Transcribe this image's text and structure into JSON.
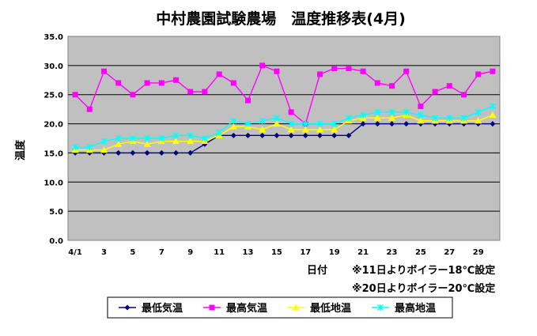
{
  "chart_data": {
    "type": "line",
    "title": "中村農園試験農場　温度推移表(4月)",
    "ylabel": "温度",
    "xlabel": "日付",
    "ylim": [
      0,
      35
    ],
    "y_ticks": [
      "0.0",
      "5.0",
      "10.0",
      "15.0",
      "20.0",
      "25.0",
      "30.0",
      "35.0"
    ],
    "x_tick_labels": [
      "4/1",
      "3",
      "5",
      "7",
      "9",
      "11",
      "13",
      "15",
      "17",
      "19",
      "21",
      "23",
      "25",
      "27",
      "29"
    ],
    "x": [
      1,
      2,
      3,
      4,
      5,
      6,
      7,
      8,
      9,
      10,
      11,
      12,
      13,
      14,
      15,
      16,
      17,
      18,
      19,
      20,
      21,
      22,
      23,
      24,
      25,
      26,
      27,
      28,
      29,
      30
    ],
    "grid": true,
    "legend_position": "bottom",
    "series": [
      {
        "name": "最低気温",
        "color": "#000080",
        "marker": "diamond",
        "values": [
          15,
          15,
          15,
          15,
          15,
          15,
          15,
          15,
          15,
          16.5,
          18,
          18,
          18,
          18,
          18,
          18,
          18,
          18,
          18,
          18,
          20,
          20,
          20,
          20,
          20,
          20,
          20,
          20,
          20,
          20
        ]
      },
      {
        "name": "最高気温",
        "color": "#ff00ff",
        "marker": "square",
        "values": [
          25,
          22.5,
          29,
          27,
          25,
          27,
          27,
          27.5,
          25.5,
          25.5,
          28.5,
          27,
          24,
          30,
          29,
          22,
          20,
          28.5,
          29.5,
          29.5,
          29,
          27,
          26.5,
          29,
          23,
          25.5,
          26.5,
          25,
          28.5,
          29
        ]
      },
      {
        "name": "最低地温",
        "color": "#ffff00",
        "marker": "triangle",
        "values": [
          15.5,
          15.5,
          15.5,
          16.5,
          17,
          16.5,
          17,
          17,
          17,
          17,
          18,
          19.5,
          19.5,
          19,
          20,
          19,
          19,
          19,
          19,
          20.5,
          21,
          21,
          21,
          21.5,
          20.5,
          20.5,
          20.5,
          20.5,
          20.5,
          21.5
        ]
      },
      {
        "name": "最高地温",
        "color": "#00ffff",
        "marker": "x",
        "values": [
          16,
          16,
          17,
          17.5,
          17.5,
          17.5,
          17.5,
          18,
          18,
          17.5,
          18.5,
          20.5,
          20,
          20.5,
          21,
          20,
          20,
          20,
          20,
          21,
          21.5,
          22,
          22,
          22,
          21.5,
          21,
          21,
          21,
          22,
          23
        ]
      }
    ],
    "notes": [
      "※11日よりボイラー18℃設定",
      "※20日よりボイラー20℃設定"
    ]
  }
}
